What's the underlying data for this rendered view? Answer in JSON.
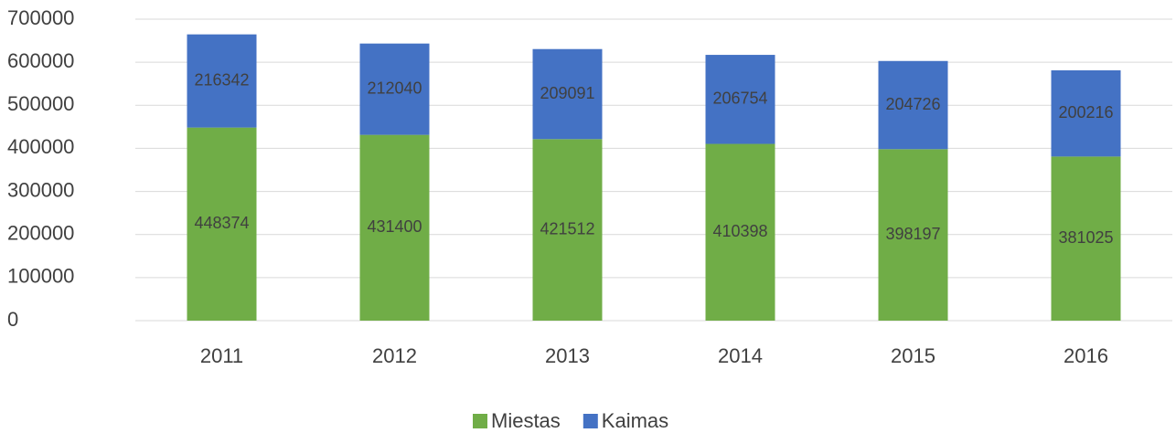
{
  "chart_data": {
    "type": "stacked_bar",
    "categories": [
      "2011",
      "2012",
      "2013",
      "2014",
      "2015",
      "2016"
    ],
    "series": [
      {
        "name": "Miestas",
        "color": "#70ad47",
        "values": [
          448374,
          431400,
          421512,
          410398,
          398197,
          381025
        ]
      },
      {
        "name": "Kaimas",
        "color": "#4472c4",
        "values": [
          216342,
          212040,
          209091,
          206754,
          204726,
          200216
        ]
      }
    ],
    "ylim": [
      0,
      700000
    ],
    "yticks": [
      0,
      100000,
      200000,
      300000,
      400000,
      500000,
      600000,
      700000
    ],
    "grid": true,
    "legend": "bottom"
  }
}
